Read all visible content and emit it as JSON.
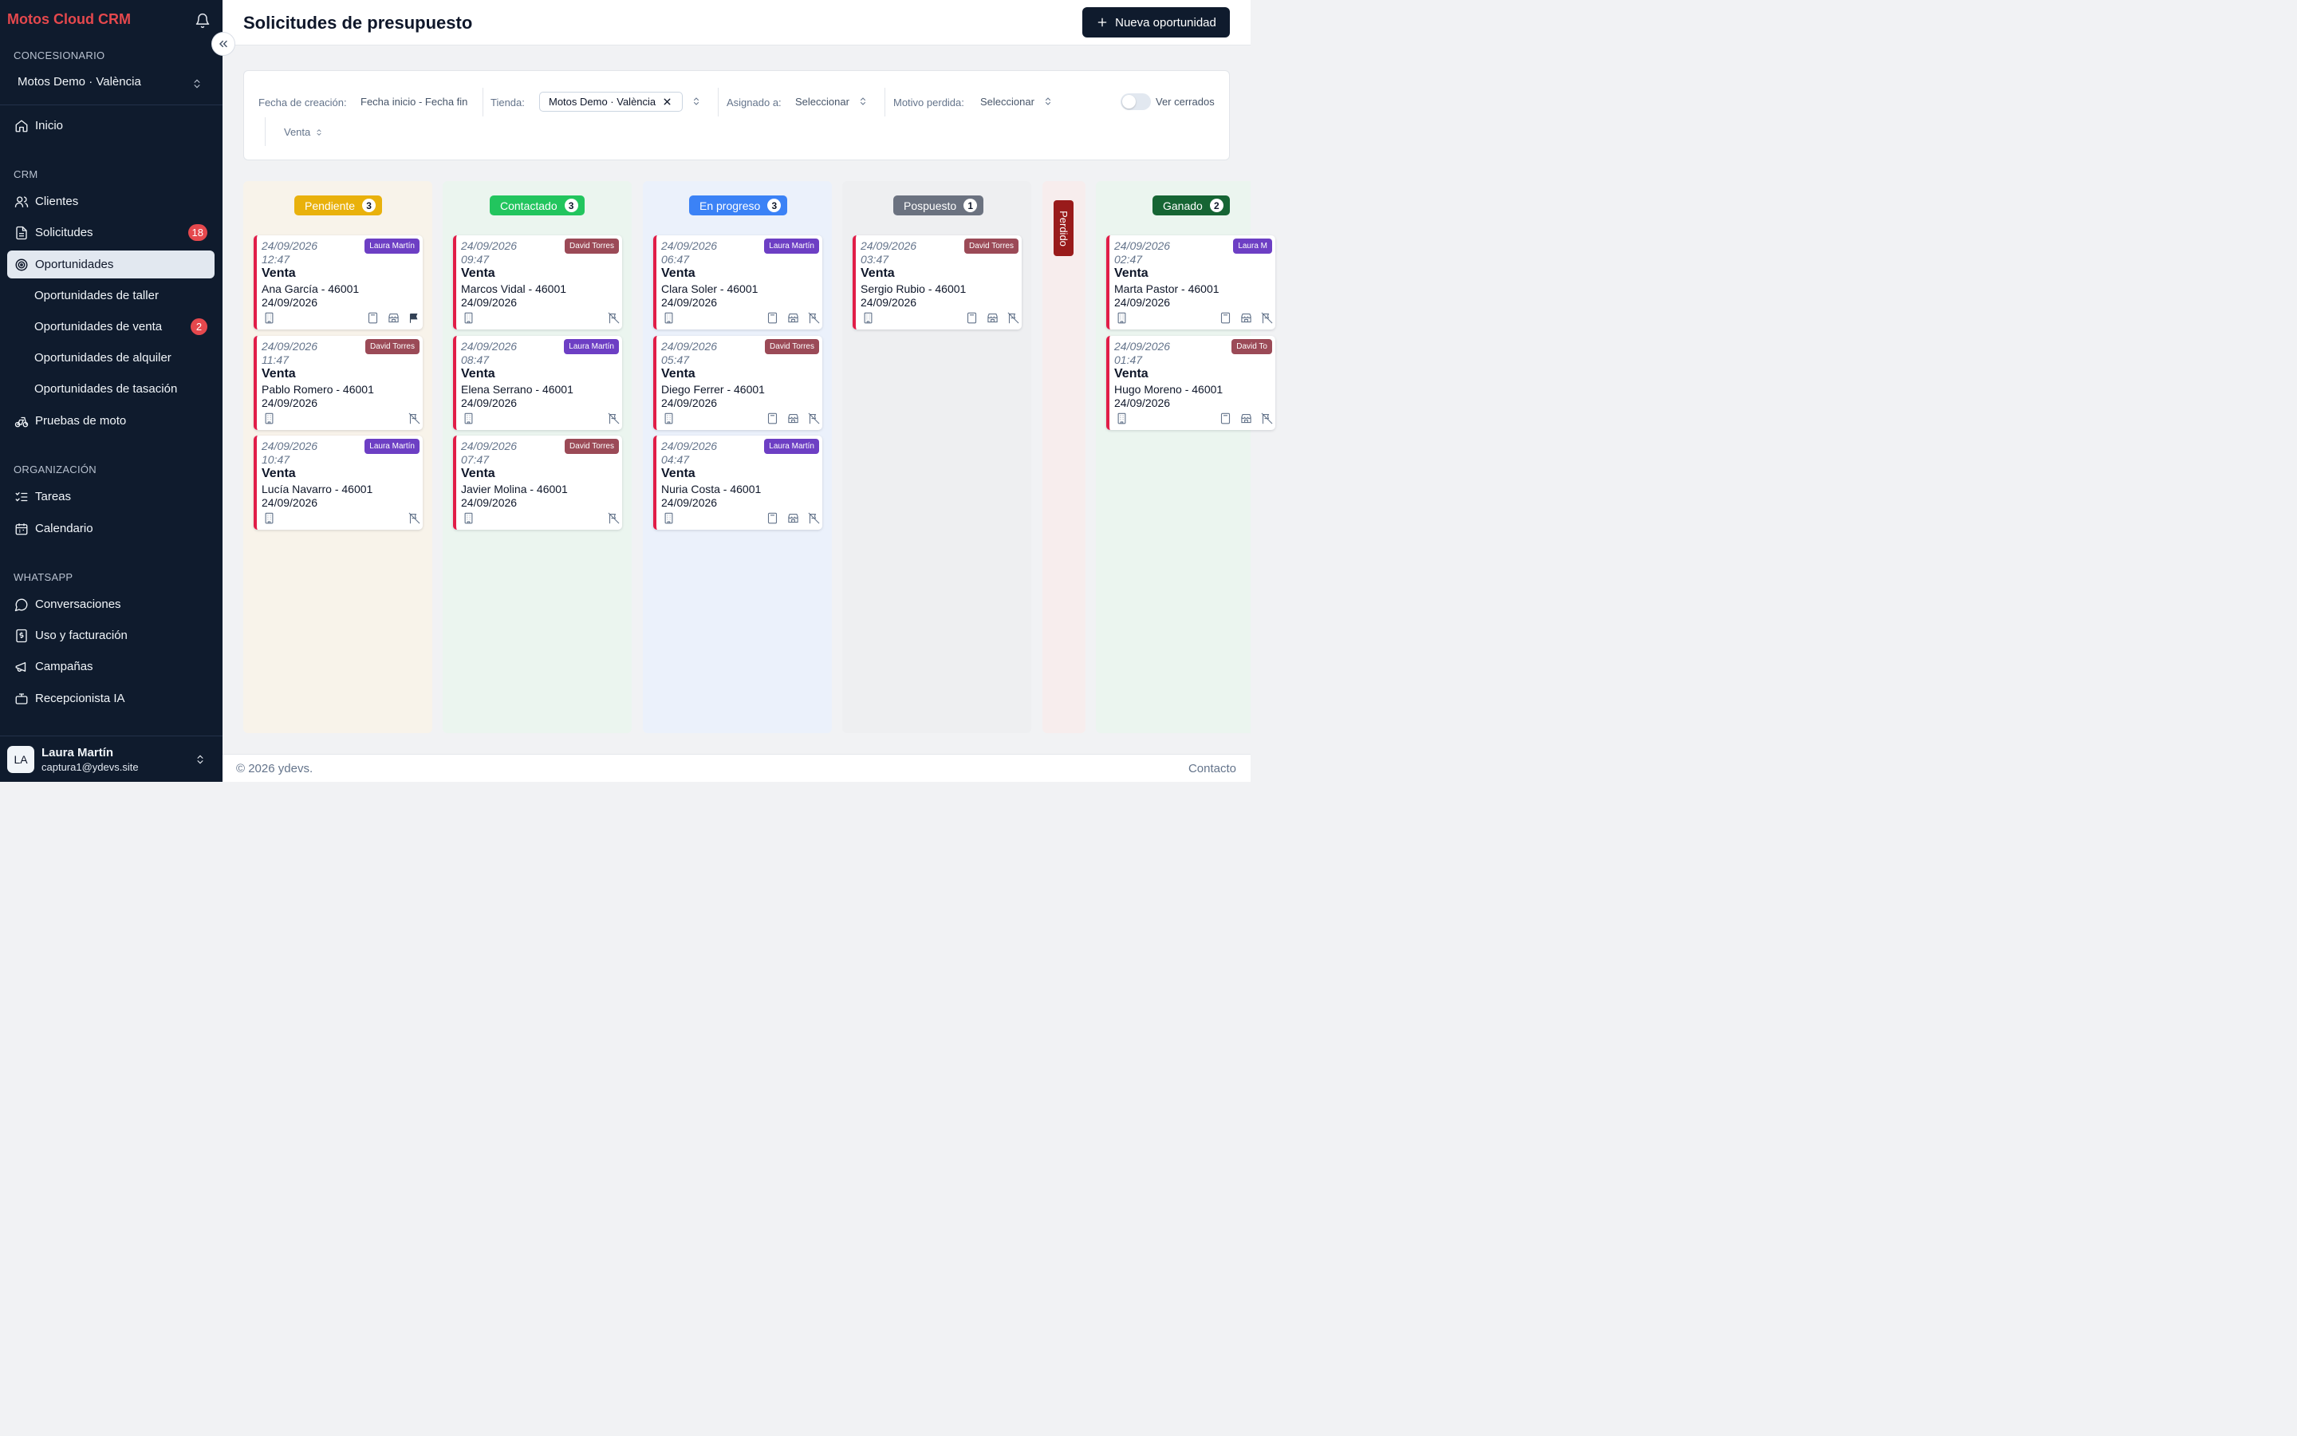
{
  "app": {
    "brand": "Motos Cloud CRM"
  },
  "sidebar": {
    "dealer_label": "CONCESIONARIO",
    "dealer_value": "Motos Demo · València",
    "home": "Inicio",
    "crm_label": "CRM",
    "crm_items": [
      {
        "label": "Clientes"
      },
      {
        "label": "Solicitudes",
        "badge": "18"
      },
      {
        "label": "Oportunidades"
      },
      {
        "label": "Oportunidades de taller"
      },
      {
        "label": "Oportunidades de venta",
        "badge": "2"
      },
      {
        "label": "Oportunidades de alquiler"
      },
      {
        "label": "Oportunidades de tasación"
      },
      {
        "label": "Pruebas de moto"
      }
    ],
    "org_label": "ORGANIZACIÓN",
    "org_items": [
      {
        "label": "Tareas"
      },
      {
        "label": "Calendario"
      }
    ],
    "wa_label": "WHATSAPP",
    "wa_items": [
      {
        "label": "Conversaciones"
      },
      {
        "label": "Uso y facturación"
      },
      {
        "label": "Campañas"
      },
      {
        "label": "Recepcionista IA"
      }
    ],
    "user": {
      "initials": "LA",
      "name": "Laura Martín",
      "email": "captura1@ydevs.site"
    }
  },
  "header": {
    "title": "Solicitudes de presupuesto",
    "new_button": "Nueva oportunidad"
  },
  "filters": {
    "created_label": "Fecha de creación:",
    "created_value": "Fecha inicio - Fecha fin",
    "store_label": "Tienda:",
    "store_value": "Motos Demo · València",
    "assigned_label": "Asignado a:",
    "assigned_value": "Seleccionar",
    "reason_label": "Motivo perdida:",
    "reason_value": "Seleccionar",
    "closed_label": "Ver cerrados",
    "type_value": "Venta"
  },
  "colors": {
    "pendiente": "#e9b10c",
    "contactado": "#22c55e",
    "en_progreso": "#3b82f6",
    "pospuesto": "#6b7280",
    "perdido": "#991b1b",
    "ganado": "#166534",
    "laura": "#6d3fc4",
    "david": "#9b4a57"
  },
  "columns": [
    {
      "title": "Pendiente",
      "count": "3",
      "cards": [
        {
          "date": "24/09/2026",
          "time": "12:47",
          "agent": "Laura Martín",
          "type": "Venta",
          "name": "Ana García - 46001",
          "date2": "24/09/2026"
        },
        {
          "date": "24/09/2026",
          "time": "11:47",
          "agent": "David Torres",
          "type": "Venta",
          "name": "Pablo Romero - 46001",
          "date2": "24/09/2026"
        },
        {
          "date": "24/09/2026",
          "time": "10:47",
          "agent": "Laura Martín",
          "type": "Venta",
          "name": "Lucía Navarro - 46001",
          "date2": "24/09/2026"
        }
      ]
    },
    {
      "title": "Contactado",
      "count": "3",
      "cards": [
        {
          "date": "24/09/2026",
          "time": "09:47",
          "agent": "David Torres",
          "type": "Venta",
          "name": "Marcos Vidal - 46001",
          "date2": "24/09/2026"
        },
        {
          "date": "24/09/2026",
          "time": "08:47",
          "agent": "Laura Martín",
          "type": "Venta",
          "name": "Elena Serrano - 46001",
          "date2": "24/09/2026"
        },
        {
          "date": "24/09/2026",
          "time": "07:47",
          "agent": "David Torres",
          "type": "Venta",
          "name": "Javier Molina - 46001",
          "date2": "24/09/2026"
        }
      ]
    },
    {
      "title": "En progreso",
      "count": "3",
      "cards": [
        {
          "date": "24/09/2026",
          "time": "06:47",
          "agent": "Laura Martín",
          "type": "Venta",
          "name": "Clara Soler - 46001",
          "date2": "24/09/2026"
        },
        {
          "date": "24/09/2026",
          "time": "05:47",
          "agent": "David Torres",
          "type": "Venta",
          "name": "Diego Ferrer - 46001",
          "date2": "24/09/2026"
        },
        {
          "date": "24/09/2026",
          "time": "04:47",
          "agent": "Laura Martín",
          "type": "Venta",
          "name": "Nuria Costa - 46001",
          "date2": "24/09/2026"
        }
      ]
    },
    {
      "title": "Pospuesto",
      "count": "1",
      "cards": [
        {
          "date": "24/09/2026",
          "time": "03:47",
          "agent": "David Torres",
          "type": "Venta",
          "name": "Sergio Rubio - 46001",
          "date2": "24/09/2026"
        }
      ]
    },
    {
      "title": "Perdido"
    },
    {
      "title": "Ganado",
      "count": "2",
      "cards": [
        {
          "date": "24/09/2026",
          "time": "02:47",
          "agent": "Laura M",
          "type": "Venta",
          "name": "Marta Pastor - 46001",
          "date2": "24/09/2026"
        },
        {
          "date": "24/09/2026",
          "time": "01:47",
          "agent": "David To",
          "type": "Venta",
          "name": "Hugo Moreno - 46001",
          "date2": "24/09/2026"
        }
      ]
    }
  ],
  "footer": {
    "copyright": "© 2026 ydevs.",
    "contact": "Contacto"
  }
}
